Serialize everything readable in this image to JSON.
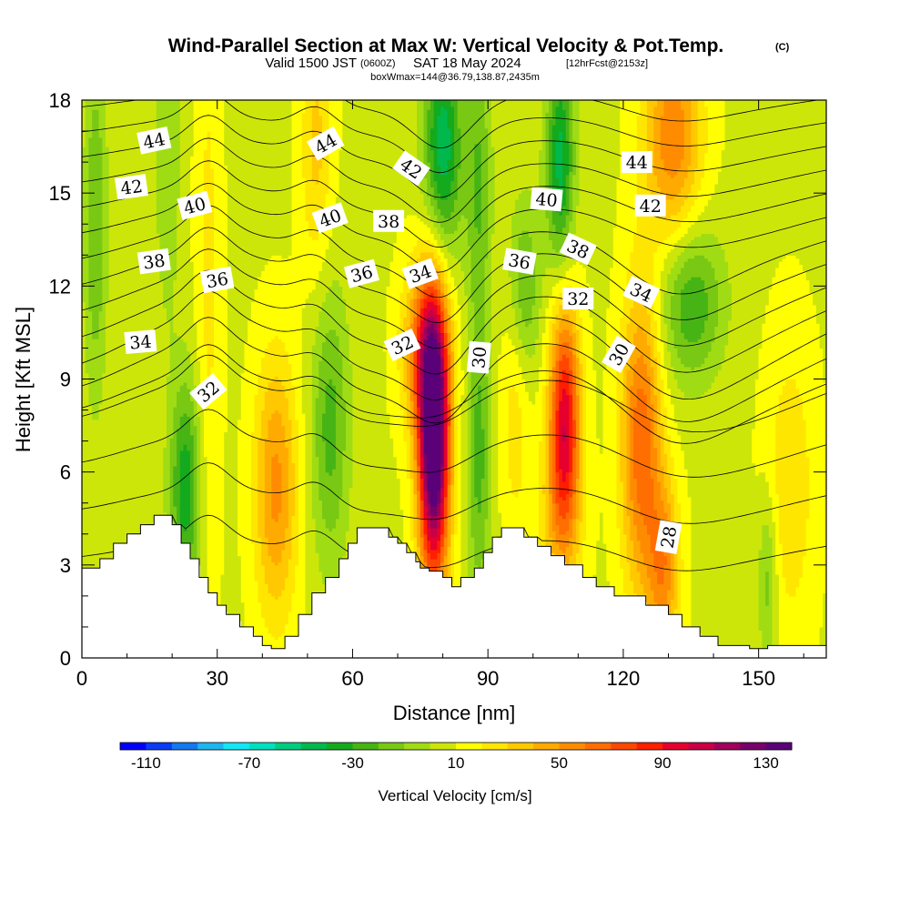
{
  "title": {
    "main": "Wind-Parallel Section at Max W: Vertical Velocity & Pot.Temp.",
    "copyright": "(C)",
    "valid_prefix": "Valid 1500 JST",
    "valid_utc": "(0600Z)",
    "valid_date": "SAT 18 May 2024",
    "forecast": "[12hrFcst@2153z]",
    "box": "boxWmax=144@36.79,138.87,2435m"
  },
  "chart_data": {
    "type": "heatmap",
    "xlabel": "Distance [nm]",
    "ylabel": "Height [Kft MSL]",
    "xlim": [
      0,
      165
    ],
    "ylim": [
      0,
      18
    ],
    "x_ticks": [
      0,
      30,
      60,
      90,
      120,
      150
    ],
    "y_ticks": [
      0,
      3,
      6,
      9,
      12,
      15,
      18
    ],
    "x_tick_labels": [
      "0",
      "30",
      "60",
      "90",
      "120",
      "150"
    ],
    "y_tick_labels": [
      "0",
      "3",
      "6",
      "9",
      "12",
      "15",
      "18"
    ],
    "colorbar": {
      "title": "Vertical Velocity [cm/s]",
      "min": -120,
      "max": 140,
      "step": 10,
      "tick_labels": [
        "-110",
        "-70",
        "-30",
        "10",
        "50",
        "90",
        "130"
      ],
      "tick_values": [
        -110,
        -70,
        -30,
        10,
        50,
        90,
        130
      ],
      "colors": [
        "#0000ff",
        "#0a3cf5",
        "#1478f0",
        "#1eb4f0",
        "#14e6f5",
        "#00e0c0",
        "#00cc80",
        "#00b84c",
        "#14aa1e",
        "#46b414",
        "#78c814",
        "#a0dc14",
        "#cde60a",
        "#ffff00",
        "#ffe600",
        "#ffc800",
        "#ffaa00",
        "#ff8c00",
        "#ff6e00",
        "#ff4600",
        "#ff1e00",
        "#e6002d",
        "#c80046",
        "#a0005a",
        "#780069",
        "#5a0078"
      ]
    },
    "terrain": [
      [
        0,
        2.9
      ],
      [
        4,
        2.9
      ],
      [
        4,
        3.2
      ],
      [
        7,
        3.2
      ],
      [
        7,
        3.7
      ],
      [
        10,
        3.7
      ],
      [
        10,
        4.0
      ],
      [
        13,
        4.0
      ],
      [
        13,
        4.3
      ],
      [
        16,
        4.3
      ],
      [
        16,
        4.6
      ],
      [
        20,
        4.6
      ],
      [
        20,
        4.3
      ],
      [
        22,
        4.3
      ],
      [
        22,
        3.7
      ],
      [
        24,
        3.7
      ],
      [
        24,
        3.2
      ],
      [
        26,
        3.2
      ],
      [
        26,
        2.6
      ],
      [
        28,
        2.6
      ],
      [
        28,
        2.1
      ],
      [
        30,
        2.1
      ],
      [
        30,
        1.7
      ],
      [
        32,
        1.7
      ],
      [
        32,
        1.4
      ],
      [
        35,
        1.4
      ],
      [
        35,
        1.0
      ],
      [
        38,
        1.0
      ],
      [
        38,
        0.7
      ],
      [
        40,
        0.7
      ],
      [
        40,
        0.4
      ],
      [
        42,
        0.4
      ],
      [
        42,
        0.3
      ],
      [
        45,
        0.3
      ],
      [
        45,
        0.7
      ],
      [
        48,
        0.7
      ],
      [
        48,
        1.4
      ],
      [
        51,
        1.4
      ],
      [
        51,
        2.1
      ],
      [
        54,
        2.1
      ],
      [
        54,
        2.6
      ],
      [
        57,
        2.6
      ],
      [
        57,
        3.2
      ],
      [
        59,
        3.2
      ],
      [
        59,
        3.7
      ],
      [
        61,
        3.7
      ],
      [
        61,
        4.2
      ],
      [
        68,
        4.2
      ],
      [
        68,
        3.9
      ],
      [
        70,
        3.9
      ],
      [
        70,
        3.7
      ],
      [
        72,
        3.7
      ],
      [
        72,
        3.4
      ],
      [
        74,
        3.4
      ],
      [
        74,
        3.1
      ],
      [
        75,
        3.1
      ],
      [
        75,
        2.9
      ],
      [
        77,
        2.9
      ],
      [
        77,
        2.8
      ],
      [
        80,
        2.8
      ],
      [
        80,
        2.6
      ],
      [
        82,
        2.6
      ],
      [
        82,
        2.3
      ],
      [
        84,
        2.3
      ],
      [
        84,
        2.6
      ],
      [
        87,
        2.6
      ],
      [
        87,
        2.9
      ],
      [
        89,
        2.9
      ],
      [
        89,
        3.4
      ],
      [
        91,
        3.4
      ],
      [
        91,
        3.9
      ],
      [
        93,
        3.9
      ],
      [
        93,
        4.2
      ],
      [
        98,
        4.2
      ],
      [
        98,
        3.9
      ],
      [
        101,
        3.9
      ],
      [
        101,
        3.6
      ],
      [
        104,
        3.6
      ],
      [
        104,
        3.3
      ],
      [
        107,
        3.3
      ],
      [
        107,
        3.0
      ],
      [
        111,
        3.0
      ],
      [
        111,
        2.6
      ],
      [
        114,
        2.6
      ],
      [
        114,
        2.3
      ],
      [
        118,
        2.3
      ],
      [
        118,
        2.0
      ],
      [
        125,
        2.0
      ],
      [
        125,
        1.7
      ],
      [
        130,
        1.7
      ],
      [
        130,
        1.4
      ],
      [
        133,
        1.4
      ],
      [
        133,
        1.0
      ],
      [
        137,
        1.0
      ],
      [
        137,
        0.7
      ],
      [
        141,
        0.7
      ],
      [
        141,
        0.4
      ],
      [
        148,
        0.4
      ],
      [
        148,
        0.3
      ],
      [
        152,
        0.3
      ],
      [
        152,
        0.4
      ],
      [
        165,
        0.4
      ]
    ],
    "w_features": [
      {
        "x": 78,
        "z": 7.0,
        "sx": 2.4,
        "sz": 3.2,
        "amp": 150
      },
      {
        "x": 76,
        "z": 10.0,
        "sx": 3.5,
        "sz": 2.0,
        "amp": 50
      },
      {
        "x": 107,
        "z": 7.8,
        "sx": 2.4,
        "sz": 2.6,
        "amp": 85
      },
      {
        "x": 106,
        "z": 4.5,
        "sx": 3.5,
        "sz": 2.0,
        "amp": 25
      },
      {
        "x": 124,
        "z": 7.0,
        "sx": 3.2,
        "sz": 3.5,
        "amp": 60
      },
      {
        "x": 129,
        "z": 2.9,
        "sx": 2.5,
        "sz": 2.0,
        "amp": 45
      },
      {
        "x": 43,
        "z": 5.5,
        "sx": 3.4,
        "sz": 3.0,
        "amp": 45
      },
      {
        "x": 28,
        "z": 12.0,
        "sx": 2.0,
        "sz": 7.5,
        "amp": 15
      },
      {
        "x": 52,
        "z": 16.5,
        "sx": 2.5,
        "sz": 3.0,
        "amp": 25
      },
      {
        "x": 131,
        "z": 16.8,
        "sx": 4.5,
        "sz": 2.5,
        "amp": 50
      },
      {
        "x": 96,
        "z": 8.0,
        "sx": 2.2,
        "sz": 3.0,
        "amp": 18
      },
      {
        "x": 157,
        "z": 5.5,
        "sx": 4.0,
        "sz": 3.5,
        "amp": 20
      },
      {
        "x": 23,
        "z": 5.5,
        "sx": 2.5,
        "sz": 2.5,
        "amp": -45
      },
      {
        "x": 3,
        "z": 14.0,
        "sx": 1.8,
        "sz": 4.0,
        "amp": -28
      },
      {
        "x": 19,
        "z": 16.5,
        "sx": 2.0,
        "sz": 4.0,
        "amp": -18
      },
      {
        "x": 55,
        "z": 7.5,
        "sx": 3.0,
        "sz": 3.2,
        "amp": -32
      },
      {
        "x": 80,
        "z": 16.5,
        "sx": 3.0,
        "sz": 2.6,
        "amp": -55
      },
      {
        "x": 88,
        "z": 6.5,
        "sx": 1.8,
        "sz": 3.5,
        "amp": -32
      },
      {
        "x": 88,
        "z": 15.5,
        "sx": 2.0,
        "sz": 3.0,
        "amp": -28
      },
      {
        "x": 106,
        "z": 16.0,
        "sx": 2.2,
        "sz": 2.5,
        "amp": -52
      },
      {
        "x": 135,
        "z": 11.5,
        "sx": 5.0,
        "sz": 1.8,
        "amp": -38
      },
      {
        "x": 152,
        "z": 2.5,
        "sx": 1.5,
        "sz": 2.0,
        "amp": -25
      },
      {
        "x": 98,
        "z": 12.0,
        "sx": 2.5,
        "sz": 2.0,
        "amp": -30
      }
    ],
    "theta_levels": [
      28,
      29,
      30,
      31,
      32,
      33,
      34,
      35,
      36,
      37,
      38,
      39,
      40,
      41,
      42,
      43,
      44
    ],
    "contour_labels": [
      {
        "text": "44",
        "x": 16,
        "z": 16.7,
        "rot": -12
      },
      {
        "x": 54,
        "z": 16.6,
        "rot": -30,
        "text": "44"
      },
      {
        "x": 73,
        "z": 15.8,
        "rot": 35,
        "text": "42"
      },
      {
        "x": 123,
        "z": 16.0,
        "rot": 0,
        "text": "44"
      },
      {
        "x": 11,
        "z": 15.2,
        "rot": -8,
        "text": "42"
      },
      {
        "x": 25,
        "z": 14.6,
        "rot": -15,
        "text": "40"
      },
      {
        "x": 55,
        "z": 14.2,
        "rot": -20,
        "text": "40"
      },
      {
        "x": 68,
        "z": 14.1,
        "rot": 0,
        "text": "38"
      },
      {
        "x": 103,
        "z": 14.8,
        "rot": 5,
        "text": "40"
      },
      {
        "x": 126,
        "z": 14.6,
        "rot": 0,
        "text": "42"
      },
      {
        "x": 16,
        "z": 12.8,
        "rot": -8,
        "text": "38"
      },
      {
        "x": 30,
        "z": 12.2,
        "rot": -10,
        "text": "36"
      },
      {
        "x": 62,
        "z": 12.4,
        "rot": -15,
        "text": "36"
      },
      {
        "x": 75,
        "z": 12.4,
        "rot": -20,
        "text": "34"
      },
      {
        "x": 97,
        "z": 12.8,
        "rot": 10,
        "text": "36"
      },
      {
        "x": 110,
        "z": 13.2,
        "rot": 25,
        "text": "38"
      },
      {
        "x": 124,
        "z": 11.8,
        "rot": 25,
        "text": "34"
      },
      {
        "x": 110,
        "z": 11.6,
        "rot": 0,
        "text": "32"
      },
      {
        "x": 13,
        "z": 10.2,
        "rot": -5,
        "text": "34"
      },
      {
        "x": 71,
        "z": 10.1,
        "rot": -25,
        "text": "32"
      },
      {
        "x": 88,
        "z": 9.7,
        "rot": -85,
        "text": "30"
      },
      {
        "x": 119,
        "z": 9.8,
        "rot": -60,
        "text": "30"
      },
      {
        "x": 28,
        "z": 8.6,
        "rot": -40,
        "text": "32"
      },
      {
        "x": 130,
        "z": 3.9,
        "rot": -80,
        "text": "28"
      }
    ]
  }
}
